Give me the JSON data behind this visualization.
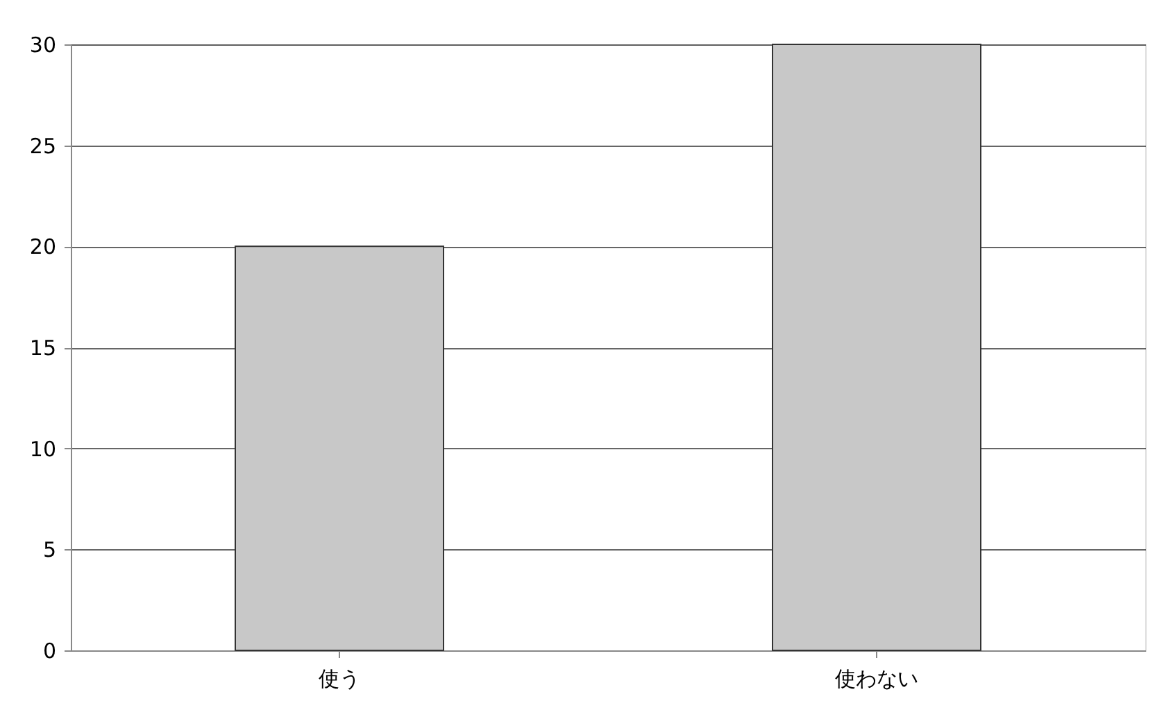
{
  "chart_data": {
    "type": "bar",
    "categories": [
      "使う",
      "使わない"
    ],
    "values": [
      20,
      30
    ],
    "color": "#c8c8c8",
    "ylim": [
      0,
      30
    ],
    "yticks": [
      0,
      5,
      10,
      15,
      20,
      25,
      30
    ],
    "grid": "y"
  }
}
